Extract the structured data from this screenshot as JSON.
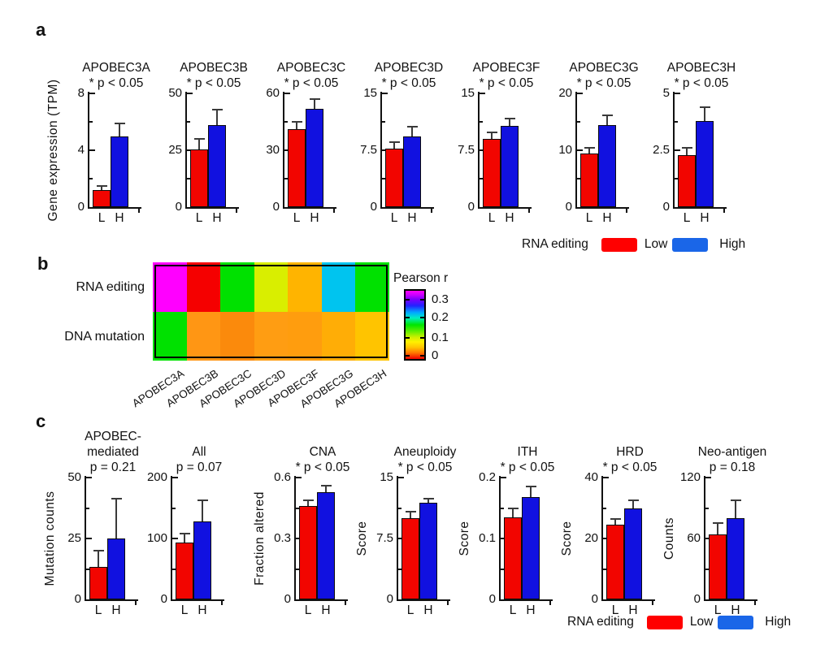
{
  "panel_labels": {
    "a": "a",
    "b": "b",
    "c": "c"
  },
  "legend": {
    "title": "RNA editing",
    "low_label": "Low",
    "high_label": "High",
    "low_color": "#FF0000",
    "high_color": "#1A66E8"
  },
  "colors": {
    "bar_low": "#F20500",
    "bar_high": "#1111E0",
    "axis": "#111111",
    "error_bar": "#3A3A3A"
  },
  "panel_a": {
    "shared_ylabel": "Gene expression (TPM)"
  },
  "panel_b": {
    "row_labels": [
      "RNA editing",
      "DNA mutation"
    ],
    "colorbar_title": "Pearson r",
    "colorbar_ticks": [
      "0.3",
      "0.2",
      "0.1",
      "0"
    ]
  },
  "chart_data": [
    {
      "id": "a1",
      "panel": "a",
      "type": "bar",
      "title": "APOBEC3A",
      "subtitle": "* p < 0.05",
      "ylabel": "Gene expression (TPM)",
      "ylim": [
        0,
        8
      ],
      "yticks": [
        0,
        4,
        8
      ],
      "ytick_labels": [
        "0",
        "4",
        "8"
      ],
      "categories": [
        "L",
        "H"
      ],
      "series": [
        {
          "name": "Low",
          "value": 1.2,
          "error": 0.3
        },
        {
          "name": "High",
          "value": 5.0,
          "error": 0.9
        }
      ]
    },
    {
      "id": "a2",
      "panel": "a",
      "type": "bar",
      "title": "APOBEC3B",
      "subtitle": "* p < 0.05",
      "ylim": [
        0,
        50
      ],
      "yticks": [
        0,
        25,
        50
      ],
      "ytick_labels": [
        "0",
        "25",
        "50"
      ],
      "categories": [
        "L",
        "H"
      ],
      "series": [
        {
          "name": "Low",
          "value": 25.5,
          "error": 4.5
        },
        {
          "name": "High",
          "value": 36,
          "error": 7
        }
      ]
    },
    {
      "id": "a3",
      "panel": "a",
      "type": "bar",
      "title": "APOBEC3C",
      "subtitle": "* p < 0.05",
      "ylim": [
        0,
        60
      ],
      "yticks": [
        0,
        30,
        60
      ],
      "ytick_labels": [
        "0",
        "30",
        "60"
      ],
      "categories": [
        "L",
        "H"
      ],
      "series": [
        {
          "name": "Low",
          "value": 41,
          "error": 4
        },
        {
          "name": "High",
          "value": 52,
          "error": 5
        }
      ]
    },
    {
      "id": "a4",
      "panel": "a",
      "type": "bar",
      "title": "APOBEC3D",
      "subtitle": "* p < 0.05",
      "ylim": [
        0,
        15
      ],
      "yticks": [
        0,
        7.5,
        15
      ],
      "ytick_labels": [
        "0",
        "7.5",
        "15"
      ],
      "categories": [
        "L",
        "H"
      ],
      "series": [
        {
          "name": "Low",
          "value": 7.7,
          "error": 0.9
        },
        {
          "name": "High",
          "value": 9.3,
          "error": 1.3
        }
      ]
    },
    {
      "id": "a5",
      "panel": "a",
      "type": "bar",
      "title": "APOBEC3F",
      "subtitle": "* p < 0.05",
      "ylim": [
        0,
        15
      ],
      "yticks": [
        0,
        7.5,
        15
      ],
      "ytick_labels": [
        "0",
        "7.5",
        "15"
      ],
      "categories": [
        "L",
        "H"
      ],
      "series": [
        {
          "name": "Low",
          "value": 9.0,
          "error": 0.9
        },
        {
          "name": "High",
          "value": 10.7,
          "error": 1.0
        }
      ]
    },
    {
      "id": "a6",
      "panel": "a",
      "type": "bar",
      "title": "APOBEC3G",
      "subtitle": "* p < 0.05",
      "ylim": [
        0,
        20
      ],
      "yticks": [
        0,
        10,
        20
      ],
      "ytick_labels": [
        "0",
        "10",
        "20"
      ],
      "categories": [
        "L",
        "H"
      ],
      "series": [
        {
          "name": "Low",
          "value": 9.5,
          "error": 1.0
        },
        {
          "name": "High",
          "value": 14.5,
          "error": 1.6
        }
      ]
    },
    {
      "id": "a7",
      "panel": "a",
      "type": "bar",
      "title": "APOBEC3H",
      "subtitle": "* p < 0.05",
      "ylim": [
        0,
        5
      ],
      "yticks": [
        0,
        2.5,
        5
      ],
      "ytick_labels": [
        "0",
        "2.5",
        "5"
      ],
      "categories": [
        "L",
        "H"
      ],
      "series": [
        {
          "name": "Low",
          "value": 2.3,
          "error": 0.3
        },
        {
          "name": "High",
          "value": 3.8,
          "error": 0.6
        }
      ]
    },
    {
      "id": "b",
      "panel": "b",
      "type": "heatmap",
      "rows": [
        "RNA editing",
        "DNA mutation"
      ],
      "columns": [
        "APOBEC3A",
        "APOBEC3B",
        "APOBEC3C",
        "APOBEC3D",
        "APOBEC3F",
        "APOBEC3G",
        "APOBEC3H"
      ],
      "cell_colors": [
        [
          "#FF00FF",
          "#F50000",
          "#00E100",
          "#D9EE00",
          "#FFB400",
          "#00C4EF",
          "#00E100"
        ],
        [
          "#00E100",
          "#FF9614",
          "#FB8A0C",
          "#FF9D12",
          "#FF9D0E",
          "#FFAD06",
          "#FFC400"
        ]
      ],
      "pearson_r_estimated": [
        [
          0.31,
          0.005,
          0.14,
          0.09,
          0.045,
          0.2,
          0.14
        ],
        [
          0.14,
          0.035,
          0.03,
          0.04,
          0.04,
          0.055,
          0.065
        ]
      ],
      "colorbar": {
        "title": "Pearson r",
        "tick_labels": [
          "0.3",
          "0.2",
          "0.1",
          "0"
        ],
        "range": [
          0,
          0.33
        ]
      }
    },
    {
      "id": "c1",
      "panel": "c",
      "type": "bar",
      "title_lines": [
        "APOBEC-",
        "mediated"
      ],
      "title": "APOBEC-mediated",
      "subtitle": "p = 0.21",
      "ylabel": "Mutation counts",
      "ylim": [
        0,
        50
      ],
      "yticks": [
        0,
        25,
        50
      ],
      "ytick_labels": [
        "0",
        "25",
        "50"
      ],
      "categories": [
        "L",
        "H"
      ],
      "series": [
        {
          "name": "Low",
          "value": 13.5,
          "error": 6.5
        },
        {
          "name": "High",
          "value": 25,
          "error": 16.5
        }
      ]
    },
    {
      "id": "c2",
      "panel": "c",
      "type": "bar",
      "title": "All",
      "subtitle": "p = 0.07",
      "ylim": [
        0,
        200
      ],
      "yticks": [
        0,
        100,
        200
      ],
      "ytick_labels": [
        "0",
        "100",
        "200"
      ],
      "categories": [
        "L",
        "H"
      ],
      "series": [
        {
          "name": "Low",
          "value": 93,
          "error": 15
        },
        {
          "name": "High",
          "value": 128,
          "error": 35
        }
      ]
    },
    {
      "id": "c3",
      "panel": "c",
      "type": "bar",
      "title": "CNA",
      "subtitle": "* p < 0.05",
      "ylabel": "Fraction altered",
      "extra_gap": true,
      "ylim": [
        0,
        0.6
      ],
      "yticks": [
        0,
        0.3,
        0.6
      ],
      "ytick_labels": [
        "0",
        "0.3",
        "0.6"
      ],
      "categories": [
        "L",
        "H"
      ],
      "series": [
        {
          "name": "Low",
          "value": 0.46,
          "error": 0.03
        },
        {
          "name": "High",
          "value": 0.53,
          "error": 0.03
        }
      ]
    },
    {
      "id": "c4",
      "panel": "c",
      "type": "bar",
      "title": "Aneuploidy",
      "subtitle": "* p < 0.05",
      "ylabel": "Score",
      "ylim": [
        0,
        15
      ],
      "yticks": [
        0,
        7.5,
        15
      ],
      "ytick_labels": [
        "0",
        "7.5",
        "15"
      ],
      "categories": [
        "L",
        "H"
      ],
      "series": [
        {
          "name": "Low",
          "value": 10.0,
          "error": 0.8
        },
        {
          "name": "High",
          "value": 11.9,
          "error": 0.5
        }
      ]
    },
    {
      "id": "c5",
      "panel": "c",
      "type": "bar",
      "title": "ITH",
      "subtitle": "* p < 0.05",
      "ylabel": "Score",
      "ylim": [
        0,
        0.2
      ],
      "yticks": [
        0,
        0.1,
        0.2
      ],
      "ytick_labels": [
        "0",
        "0.1",
        "0.2"
      ],
      "categories": [
        "L",
        "H"
      ],
      "series": [
        {
          "name": "Low",
          "value": 0.135,
          "error": 0.015
        },
        {
          "name": "High",
          "value": 0.168,
          "error": 0.018
        }
      ]
    },
    {
      "id": "c6",
      "panel": "c",
      "type": "bar",
      "title": "HRD",
      "subtitle": "* p < 0.05",
      "ylabel": "Score",
      "ylim": [
        0,
        40
      ],
      "yticks": [
        0,
        20,
        40
      ],
      "ytick_labels": [
        "0",
        "20",
        "40"
      ],
      "categories": [
        "L",
        "H"
      ],
      "series": [
        {
          "name": "Low",
          "value": 24.5,
          "error": 2.0
        },
        {
          "name": "High",
          "value": 30,
          "error": 2.5
        }
      ]
    },
    {
      "id": "c7",
      "panel": "c",
      "type": "bar",
      "title": "Neo-antigen",
      "subtitle": "p = 0.18",
      "ylabel": "Counts",
      "ylim": [
        0,
        120
      ],
      "yticks": [
        0,
        60,
        120
      ],
      "ytick_labels": [
        "0",
        "60",
        "120"
      ],
      "categories": [
        "L",
        "H"
      ],
      "series": [
        {
          "name": "Low",
          "value": 64,
          "error": 11
        },
        {
          "name": "High",
          "value": 80,
          "error": 18
        }
      ]
    }
  ]
}
